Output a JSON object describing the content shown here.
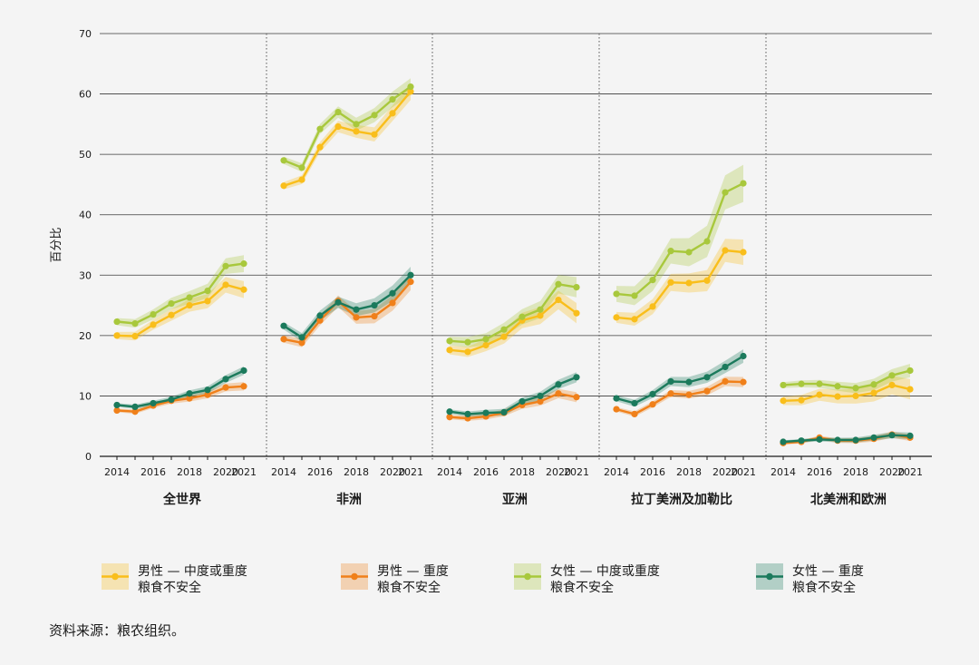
{
  "source_note": "资料来源：粮农组织。",
  "chart_data": {
    "type": "line",
    "ylabel": "百分比",
    "ylim": [
      0,
      70
    ],
    "yticks": [
      0,
      10,
      20,
      30,
      40,
      50,
      60,
      70
    ],
    "years": [
      2014,
      2015,
      2016,
      2017,
      2018,
      2019,
      2020,
      2021
    ],
    "xtick_labels": [
      "2014",
      "2016",
      "2018",
      "2020",
      "2021"
    ],
    "grid": "horizontal",
    "legend_position": "bottom",
    "regions": [
      "全世界",
      "非洲",
      "亚洲",
      "拉丁美洲及加勒比",
      "北美洲和欧洲"
    ],
    "series": [
      {
        "name_line1": "男性 — 中度或重度",
        "name_line2": "粮食不安全",
        "color": "#f9be1b",
        "band_color": "#f9be1b",
        "values": [
          [
            20.0,
            19.9,
            21.8,
            23.4,
            25.0,
            25.7,
            28.4,
            27.6
          ],
          [
            44.8,
            45.8,
            51.2,
            54.6,
            53.8,
            53.3,
            56.8,
            60.4
          ],
          [
            17.6,
            17.3,
            18.4,
            19.8,
            22.5,
            23.3,
            25.9,
            23.7
          ],
          [
            23.0,
            22.7,
            24.8,
            28.8,
            28.7,
            29.1,
            34.1,
            33.8
          ],
          [
            9.2,
            9.3,
            10.2,
            9.9,
            10.0,
            10.5,
            11.8,
            11.1
          ]
        ],
        "band": [
          1.0,
          1.0,
          1.2,
          1.5,
          1.2
        ]
      },
      {
        "name_line1": "男性 — 重度",
        "name_line2": "粮食不安全",
        "color": "#f0801a",
        "band_color": "#f0801a",
        "values": [
          [
            7.6,
            7.4,
            8.4,
            9.2,
            9.6,
            10.2,
            11.4,
            11.6
          ],
          [
            19.4,
            18.8,
            22.5,
            25.7,
            23.0,
            23.2,
            25.4,
            28.9
          ],
          [
            6.5,
            6.3,
            6.6,
            7.2,
            8.5,
            9.1,
            10.4,
            9.8
          ],
          [
            7.8,
            7.0,
            8.6,
            10.4,
            10.2,
            10.8,
            12.4,
            12.3
          ],
          [
            2.2,
            2.4,
            3.1,
            2.6,
            2.6,
            2.9,
            3.6,
            3.1
          ]
        ],
        "band": [
          0.5,
          1.0,
          0.6,
          0.6,
          0.4
        ]
      },
      {
        "name_line1": "女性 — 中度或重度",
        "name_line2": "粮食不安全",
        "color": "#a8c83c",
        "band_color": "#a8c83c",
        "values": [
          [
            22.3,
            22.0,
            23.5,
            25.3,
            26.3,
            27.4,
            31.5,
            31.9
          ],
          [
            49.0,
            47.8,
            54.2,
            57.0,
            55.0,
            56.5,
            59.1,
            61.2
          ],
          [
            19.1,
            18.9,
            19.4,
            21.0,
            23.1,
            24.3,
            28.5,
            28.0
          ],
          [
            26.9,
            26.6,
            29.2,
            34.0,
            33.8,
            35.6,
            43.7,
            45.2
          ],
          [
            11.8,
            12.0,
            12.0,
            11.6,
            11.3,
            11.9,
            13.4,
            14.2
          ]
        ],
        "band": [
          1.0,
          1.0,
          1.2,
          2.2,
          0.8
        ]
      },
      {
        "name_line1": "女性 — 重度",
        "name_line2": "粮食不安全",
        "color": "#1b7a5c",
        "band_color": "#1b7a5c",
        "values": [
          [
            8.5,
            8.2,
            8.8,
            9.4,
            10.4,
            11.0,
            12.8,
            14.2
          ],
          [
            21.6,
            19.7,
            23.3,
            25.5,
            24.3,
            25.0,
            27.0,
            30.0
          ],
          [
            7.4,
            7.0,
            7.2,
            7.3,
            9.1,
            10.0,
            11.9,
            13.1
          ],
          [
            9.6,
            8.8,
            10.3,
            12.4,
            12.3,
            13.1,
            14.8,
            16.6
          ],
          [
            2.4,
            2.6,
            2.8,
            2.7,
            2.7,
            3.1,
            3.5,
            3.4
          ]
        ],
        "band": [
          0.5,
          1.0,
          0.6,
          0.8,
          0.4
        ]
      }
    ]
  }
}
